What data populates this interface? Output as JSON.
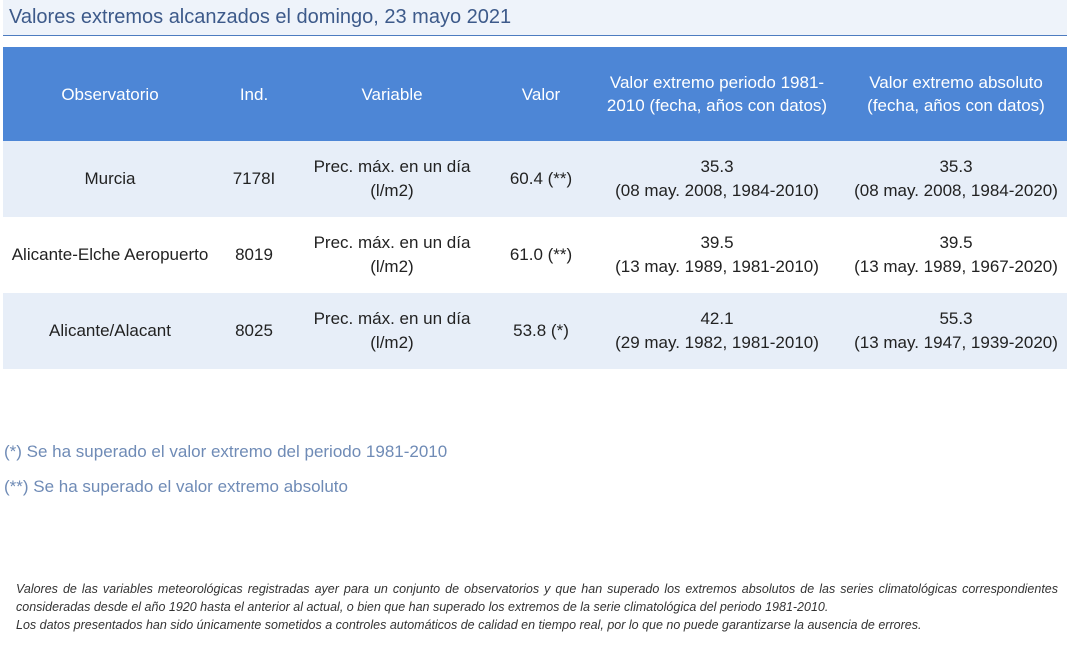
{
  "title": "Valores extremos alcanzados el domingo, 23 mayo 2021",
  "table": {
    "headers": {
      "observatorio": "Observatorio",
      "ind": "Ind.",
      "variable": "Variable",
      "valor": "Valor",
      "periodo": "Valor extremo periodo 1981-2010 (fecha, años con datos)",
      "absoluto": "Valor extremo absoluto (fecha, años con datos)"
    },
    "rows": [
      {
        "observatorio": "Murcia",
        "ind": "7178I",
        "variable": "Prec. máx. en un día (l/m2)",
        "valor": "60.4 (**)",
        "periodo_valor": "35.3",
        "periodo_fecha": "(08 may. 2008, 1984-2010)",
        "absoluto_valor": "35.3",
        "absoluto_fecha": "(08 may. 2008, 1984-2020)"
      },
      {
        "observatorio": "Alicante-Elche Aeropuerto",
        "ind": "8019",
        "variable": "Prec. máx. en un día (l/m2)",
        "valor": "61.0 (**)",
        "periodo_valor": "39.5",
        "periodo_fecha": "(13 may. 1989, 1981-2010)",
        "absoluto_valor": "39.5",
        "absoluto_fecha": "(13 may. 1989, 1967-2020)"
      },
      {
        "observatorio": "Alicante/Alacant",
        "ind": "8025",
        "variable": "Prec. máx. en un día (l/m2)",
        "valor": "53.8 (*)",
        "periodo_valor": "42.1",
        "periodo_fecha": "(29 may. 1982, 1981-2010)",
        "absoluto_valor": "55.3",
        "absoluto_fecha": "(13 may. 1947, 1939-2020)"
      }
    ]
  },
  "notes": {
    "single": "(*) Se ha superado el valor extremo del periodo 1981-2010",
    "double": "(**) Se ha superado el valor extremo absoluto"
  },
  "disclaimer": {
    "line1": "Valores de las variables meteorológicas registradas ayer para un conjunto de observatorios y que han superado los extremos absolutos de las series climatológicas correspondientes consideradas desde el año 1920 hasta el anterior al actual, o bien que han superado los extremos de la serie climatológica del periodo 1981-2010.",
    "line2": "Los datos presentados han sido únicamente sometidos a controles automáticos de calidad en tiempo real, por lo que no puede garantizarse la ausencia de errores."
  },
  "colors": {
    "header_bg": "#4d86d6",
    "row_alt_bg": "#e7eef8",
    "title_color": "#3d5a8a",
    "note_color": "#6f8bb6"
  }
}
